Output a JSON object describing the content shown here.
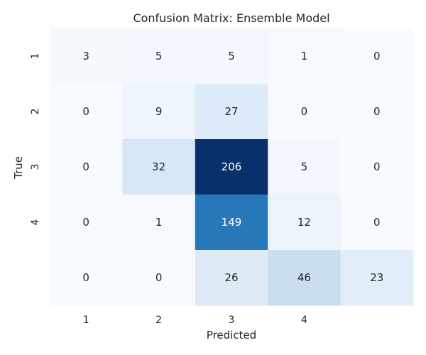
{
  "chart_data": {
    "type": "heatmap",
    "title": "Confusion Matrix: Ensemble Model",
    "xlabel": "Predicted",
    "ylabel": "True",
    "x_tick_labels": [
      "1",
      "2",
      "3",
      "4",
      ""
    ],
    "y_tick_labels": [
      "1",
      "2",
      "3",
      "4",
      ""
    ],
    "values": [
      [
        3,
        5,
        5,
        1,
        0
      ],
      [
        0,
        9,
        27,
        0,
        0
      ],
      [
        0,
        32,
        206,
        5,
        0
      ],
      [
        0,
        1,
        149,
        12,
        0
      ],
      [
        0,
        0,
        26,
        46,
        23
      ]
    ],
    "colormap": "Blues",
    "color_range": [
      0,
      206
    ],
    "colorbar": false,
    "grid": false
  },
  "colors": {
    "low": "#f7fbff",
    "high": "#08306b",
    "text_dark": "#262626",
    "text_light": "#ffffff"
  }
}
